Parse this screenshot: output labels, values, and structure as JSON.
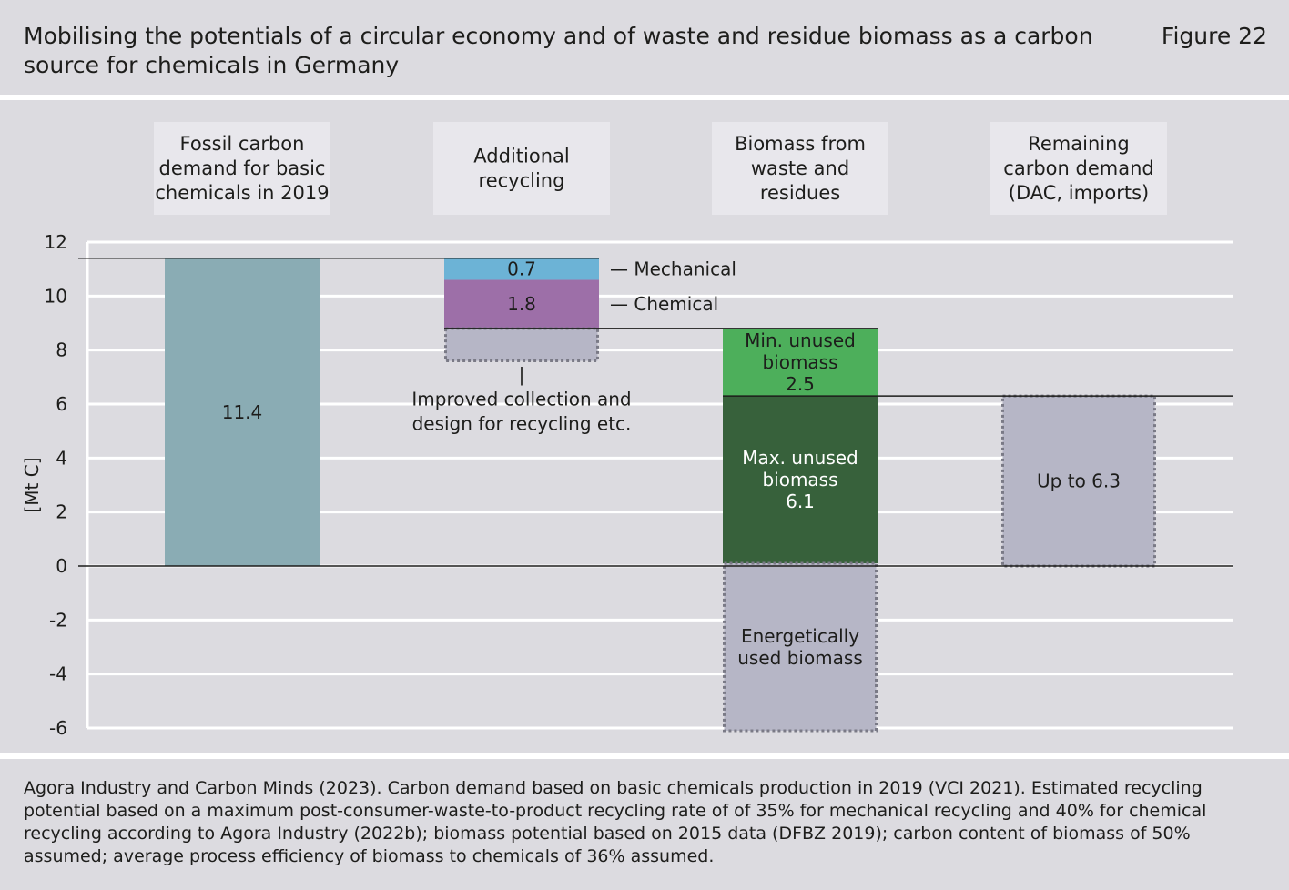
{
  "header": {
    "title": "Mobilising the potentials of a circular economy and of waste and residue biomass as a carbon source for chemicals in Germany",
    "figure_label": "Figure 22"
  },
  "footer": {
    "source": "Agora Industry and Carbon Minds (2023). Carbon demand based on basic chemicals production in 2019 (VCI 2021). Estimated recycling potential based on a maximum post-consumer-waste-to-product recycling rate of of 35% for mechanical recycling and 40% for chemical recycling according to Agora Industry (2022b); biomass potential based on 2015 data (DFBZ 2019); carbon content of biomass of 50% assumed; average process efficiency of biomass to chemicals of 36% assumed."
  },
  "chart_data": {
    "type": "bar",
    "ylabel": "[Mt C]",
    "ylim": [
      -6,
      12
    ],
    "yticks": [
      -6,
      -4,
      -2,
      0,
      2,
      4,
      6,
      8,
      10,
      12
    ],
    "grid": true,
    "categories": [
      [
        "Fossil carbon",
        "demand for basic",
        "chemicals in 2019"
      ],
      [
        "Additional",
        "recycling"
      ],
      [
        "Biomass from",
        "waste and",
        "residues"
      ],
      [
        "Remaining",
        "carbon demand",
        "(DAC, imports)"
      ]
    ],
    "segments": [
      {
        "category": 0,
        "bottom": 0,
        "top": 11.4,
        "value": 11.4,
        "color": "#8aacb4",
        "style": "solid",
        "labels": [
          "11.4"
        ]
      },
      {
        "category": 1,
        "bottom": 10.6,
        "top": 11.4,
        "value": 0.7,
        "color": "#6cb3d6",
        "style": "solid",
        "labels": [
          "0.7"
        ],
        "side_label": "— Mechanical"
      },
      {
        "category": 1,
        "bottom": 8.8,
        "top": 10.6,
        "value": 1.8,
        "color": "#9d6fa8",
        "style": "solid",
        "labels": [
          "1.8"
        ],
        "side_label": "— Chemical"
      },
      {
        "category": 1,
        "bottom": 7.6,
        "top": 8.8,
        "color": "#b6b6c6",
        "style": "dotted",
        "labels": []
      },
      {
        "category": 2,
        "bottom": 6.3,
        "top": 8.8,
        "value": 2.5,
        "color": "#4daf5b",
        "style": "solid",
        "labels": [
          "Min. unused",
          "biomass",
          "2.5"
        ]
      },
      {
        "category": 2,
        "bottom": 0.1,
        "top": 6.3,
        "value": 6.1,
        "color": "#37613b",
        "style": "solid",
        "labels": [
          "Max. unused",
          "biomass",
          "6.1"
        ],
        "label_color": "#ffffff"
      },
      {
        "category": 2,
        "bottom": -6.1,
        "top": 0.1,
        "color": "#b6b6c6",
        "style": "dotted",
        "labels": [
          "Energetically",
          "used biomass"
        ]
      },
      {
        "category": 3,
        "bottom": 0,
        "top": 6.3,
        "value": 6.3,
        "color": "#b6b6c6",
        "style": "dotted",
        "labels": [
          "Up to 6.3"
        ]
      }
    ],
    "annotations": [
      {
        "category": 1,
        "lines": [
          "|",
          "Improved collection and",
          "design for recycling etc."
        ]
      }
    ],
    "reference_lines": [
      {
        "y": 11.4,
        "from_category": 0,
        "to_category": 1
      },
      {
        "y": 8.8,
        "from_category": 1,
        "to_category": 2
      },
      {
        "y": 6.3,
        "from_category": 2,
        "to_category": 3
      }
    ]
  }
}
